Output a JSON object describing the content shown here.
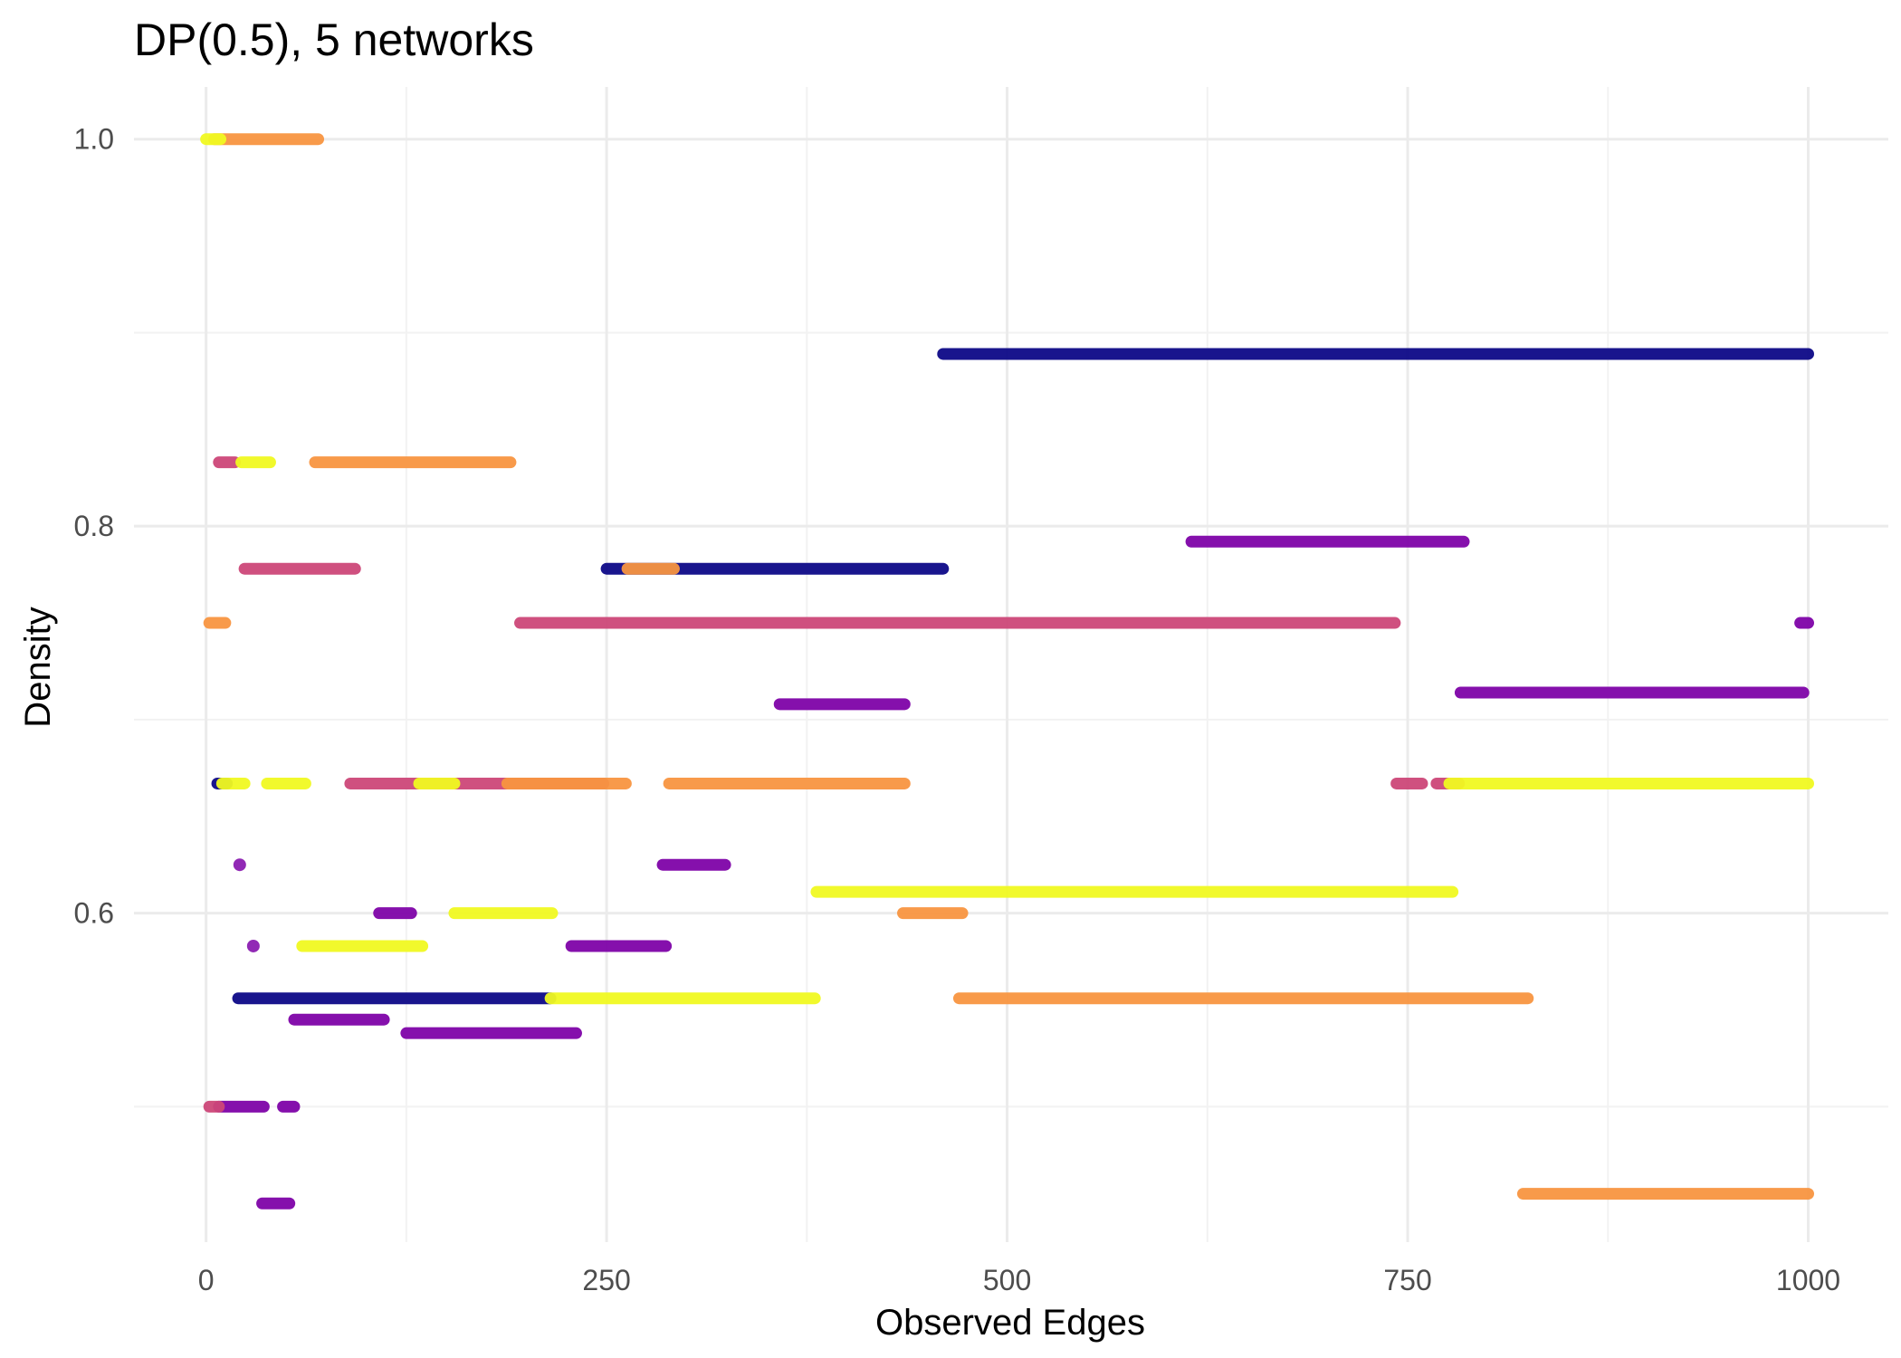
{
  "chart_data": {
    "type": "scatter",
    "title": "DP(0.5), 5 networks",
    "xlabel": "Observed Edges",
    "ylabel": "Density",
    "xlim": [
      -45,
      1050
    ],
    "ylim": [
      0.43,
      1.027
    ],
    "x_ticks": [
      0,
      250,
      500,
      750,
      1000
    ],
    "x_tick_labels": [
      "0",
      "250",
      "500",
      "750",
      "1000"
    ],
    "y_ticks": [
      0.6,
      0.8,
      1.0
    ],
    "y_tick_labels": [
      "0.6",
      "0.8",
      "1.0"
    ],
    "x_minor_ticks": [
      125,
      375,
      625,
      875
    ],
    "y_minor_ticks": [
      0.5,
      0.7,
      0.9
    ],
    "grid": true,
    "legend": "none",
    "palette": {
      "navy": "#0d0887",
      "purple": "#7e03a8",
      "magenta": "#cc4778",
      "orange": "#f89540",
      "yellow": "#f0f921"
    },
    "series": [
      {
        "color": "#0d0887",
        "segments": [
          {
            "x": [
              460,
              1000
            ],
            "y": 0.889
          },
          {
            "x": [
              250,
              460
            ],
            "y": 0.778
          },
          {
            "x": [
              20,
              215
            ],
            "y": 0.556
          },
          {
            "x": [
              7,
              13
            ],
            "y": 0.667
          }
        ]
      },
      {
        "color": "#7e03a8",
        "segments": [
          {
            "x": [
              615,
              785
            ],
            "y": 0.792
          },
          {
            "x": [
              783,
              997
            ],
            "y": 0.714
          },
          {
            "x": [
              995,
              1000
            ],
            "y": 0.75
          },
          {
            "x": [
              358,
              436
            ],
            "y": 0.708
          },
          {
            "x": [
              285,
              324
            ],
            "y": 0.625
          },
          {
            "x": [
              20,
              22
            ],
            "y": 0.625
          },
          {
            "x": [
              108,
              128
            ],
            "y": 0.6
          },
          {
            "x": [
              228,
              287
            ],
            "y": 0.583
          },
          {
            "x": [
              29,
              30
            ],
            "y": 0.583
          },
          {
            "x": [
              55,
              111
            ],
            "y": 0.545
          },
          {
            "x": [
              125,
              231
            ],
            "y": 0.538
          },
          {
            "x": [
              8,
              36
            ],
            "y": 0.5
          },
          {
            "x": [
              48,
              55
            ],
            "y": 0.5
          },
          {
            "x": [
              35,
              52
            ],
            "y": 0.45
          }
        ]
      },
      {
        "color": "#cc4778",
        "segments": [
          {
            "x": [
              8,
              18
            ],
            "y": 0.833
          },
          {
            "x": [
              24,
              93
            ],
            "y": 0.778
          },
          {
            "x": [
              196,
              742
            ],
            "y": 0.75
          },
          {
            "x": [
              90,
              248
            ],
            "y": 0.667
          },
          {
            "x": [
              743,
              759
            ],
            "y": 0.667
          },
          {
            "x": [
              768,
              782
            ],
            "y": 0.667
          },
          {
            "x": [
              2,
              8
            ],
            "y": 0.5
          }
        ]
      },
      {
        "color": "#f89540",
        "segments": [
          {
            "x": [
              5,
              70
            ],
            "y": 1.0
          },
          {
            "x": [
              68,
              190
            ],
            "y": 0.833
          },
          {
            "x": [
              263,
              292
            ],
            "y": 0.778
          },
          {
            "x": [
              2,
              12
            ],
            "y": 0.75
          },
          {
            "x": [
              188,
              262
            ],
            "y": 0.667
          },
          {
            "x": [
              289,
              436
            ],
            "y": 0.667
          },
          {
            "x": [
              435,
              472
            ],
            "y": 0.6
          },
          {
            "x": [
              470,
              825
            ],
            "y": 0.556
          },
          {
            "x": [
              822,
              1000
            ],
            "y": 0.455
          }
        ]
      },
      {
        "color": "#f0f921",
        "segments": [
          {
            "x": [
              0,
              9
            ],
            "y": 1.0
          },
          {
            "x": [
              22,
              40
            ],
            "y": 0.833
          },
          {
            "x": [
              10,
              24
            ],
            "y": 0.667
          },
          {
            "x": [
              38,
              62
            ],
            "y": 0.667
          },
          {
            "x": [
              133,
              155
            ],
            "y": 0.667
          },
          {
            "x": [
              776,
              1000
            ],
            "y": 0.667
          },
          {
            "x": [
              381,
              778
            ],
            "y": 0.611
          },
          {
            "x": [
              155,
              216
            ],
            "y": 0.6
          },
          {
            "x": [
              60,
              135
            ],
            "y": 0.583
          },
          {
            "x": [
              215,
              380
            ],
            "y": 0.556
          }
        ]
      }
    ]
  }
}
